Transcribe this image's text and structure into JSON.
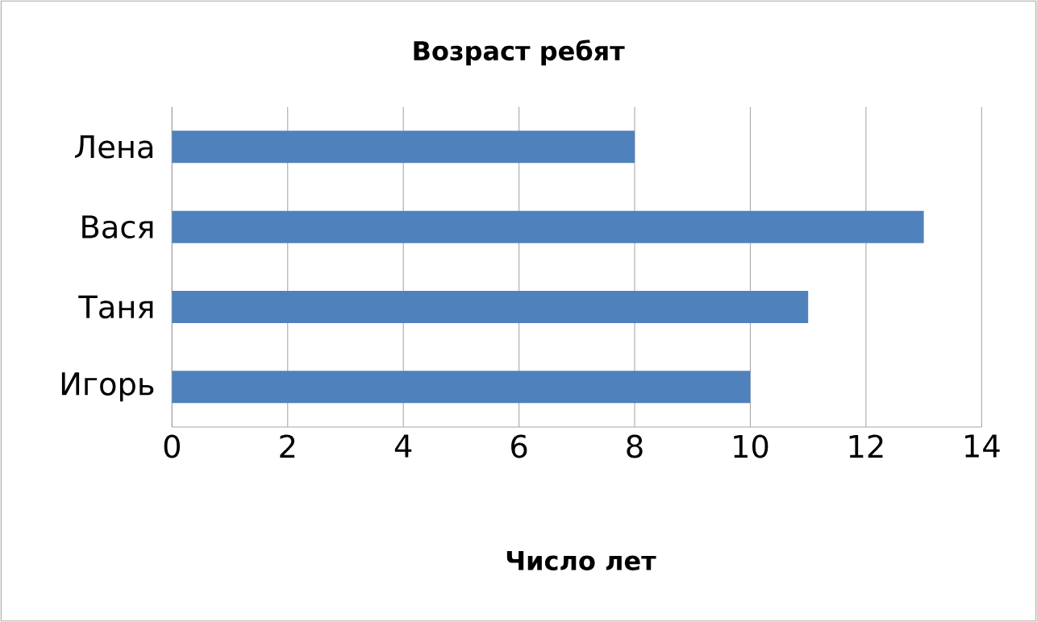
{
  "chart_data": {
    "type": "bar",
    "orientation": "horizontal",
    "title": "Возраст ребят",
    "xlabel": "Число лет",
    "categories": [
      "Лена",
      "Вася",
      "Таня",
      "Игорь"
    ],
    "values": [
      8,
      13,
      11,
      10
    ],
    "color": "#4f81bd",
    "xlim": [
      0,
      14
    ],
    "xticks": [
      0,
      2,
      4,
      6,
      8,
      10,
      12,
      14
    ],
    "grid": "x"
  }
}
